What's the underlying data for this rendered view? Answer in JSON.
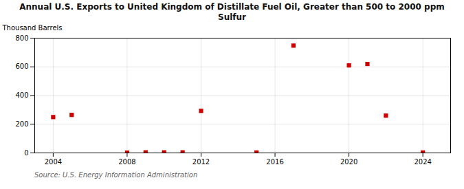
{
  "chart_data": {
    "type": "scatter",
    "title": "Annual U.S. Exports to United Kingdom of Distillate Fuel Oil, Greater than 500 to 2000 ppm\nSulfur",
    "ylabel": "Thousand Barrels",
    "source": "Source: U.S. Energy Information Administration",
    "x": [
      2004,
      2005,
      2008,
      2009,
      2010,
      2011,
      2012,
      2015,
      2017,
      2020,
      2021,
      2022,
      2024
    ],
    "values": [
      250,
      265,
      2,
      4,
      4,
      4,
      293,
      3,
      748,
      610,
      620,
      260,
      3
    ],
    "color": "#cc0000",
    "marker": "square",
    "xlim": [
      2003,
      2025.5
    ],
    "ylim": [
      0,
      800
    ],
    "xticks": [
      2004,
      2008,
      2012,
      2016,
      2020,
      2024
    ],
    "yticks": [
      0,
      200,
      400,
      600,
      800
    ],
    "grid": true
  }
}
